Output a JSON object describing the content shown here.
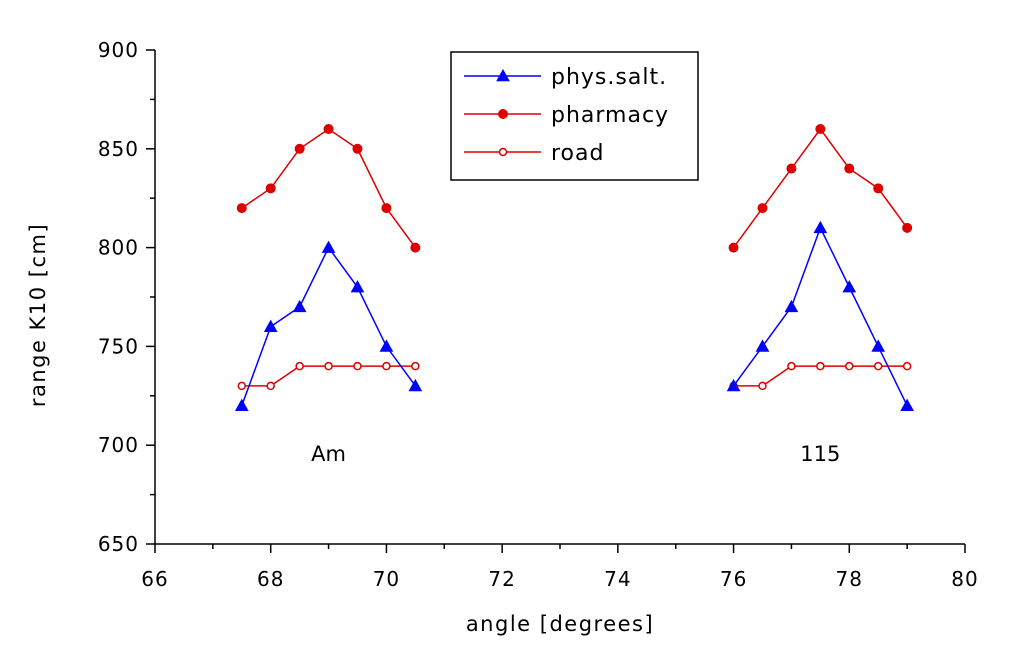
{
  "chart_data": {
    "type": "line",
    "title": "",
    "xlabel": "angle [degrees]",
    "ylabel": "range K10 [cm]",
    "xlim": [
      66,
      80
    ],
    "ylim": [
      650,
      900
    ],
    "xticks": [
      "66",
      "68",
      "70",
      "72",
      "74",
      "76",
      "78",
      "80"
    ],
    "yticks": [
      "650",
      "700",
      "750",
      "800",
      "850",
      "900"
    ],
    "grid": false,
    "legend_position": "top-center",
    "series": [
      {
        "name": "phys.salt.",
        "color": "#0000ff",
        "marker": "filled-triangle",
        "segments": [
          {
            "x": [
              67.5,
              68,
              68.5,
              69,
              69.5,
              70,
              70.5
            ],
            "y": [
              720,
              760,
              770,
              800,
              780,
              750,
              730
            ]
          },
          {
            "x": [
              76,
              76.5,
              77,
              77.5,
              78,
              78.5,
              79
            ],
            "y": [
              730,
              750,
              770,
              810,
              780,
              750,
              720
            ]
          }
        ]
      },
      {
        "name": "pharmacy",
        "color": "#dd0000",
        "marker": "filled-circle",
        "segments": [
          {
            "x": [
              67.5,
              68,
              68.5,
              69,
              69.5,
              70,
              70.5
            ],
            "y": [
              820,
              830,
              850,
              860,
              850,
              820,
              800
            ]
          },
          {
            "x": [
              76,
              76.5,
              77,
              77.5,
              78,
              78.5,
              79
            ],
            "y": [
              800,
              820,
              840,
              860,
              840,
              830,
              810
            ]
          }
        ]
      },
      {
        "name": "road",
        "color": "#dd0000",
        "marker": "open-circle",
        "segments": [
          {
            "x": [
              67.5,
              68,
              68.5,
              69,
              69.5,
              70,
              70.5
            ],
            "y": [
              730,
              730,
              740,
              740,
              740,
              740,
              740
            ]
          },
          {
            "x": [
              76,
              76.5,
              77,
              77.5,
              78,
              78.5,
              79
            ],
            "y": [
              730,
              730,
              740,
              740,
              740,
              740,
              740
            ]
          }
        ]
      }
    ],
    "annotations": [
      {
        "text": "Am",
        "x": 69.0,
        "y": 692
      },
      {
        "text": "115",
        "x": 77.5,
        "y": 692
      }
    ]
  }
}
